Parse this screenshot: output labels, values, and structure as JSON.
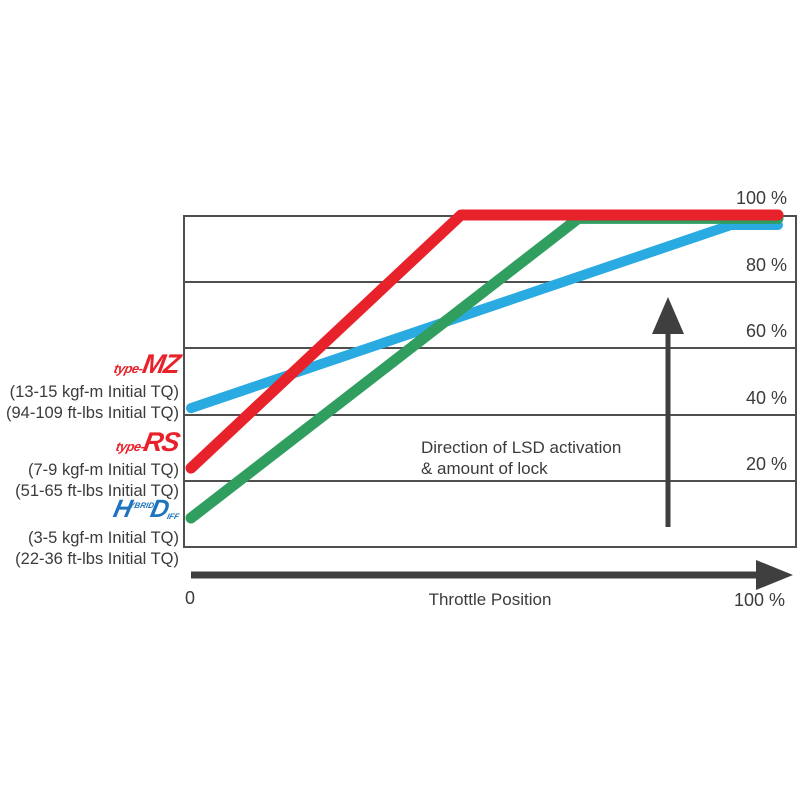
{
  "legend": {
    "items": [
      {
        "prefix": "type-",
        "brand": "MZ",
        "brand_color": "#e8222b",
        "torque_kgf": "(13-15 kgf-m Initial TQ)",
        "torque_ftlbs": "(94-109 ft-lbs Initial TQ)"
      },
      {
        "prefix": "type-",
        "brand": "RS",
        "brand_color": "#e8222b",
        "torque_kgf": "(7-9 kgf-m Initial TQ)",
        "torque_ftlbs": "(51-65 ft-lbs Initial TQ)"
      },
      {
        "brand_big_1": "H",
        "brand_small_1": "YBRID",
        "brand_big_2": "D",
        "brand_small_2": "IFF",
        "brand_color": "#1e73be",
        "torque_kgf": "(3-5 kgf-m Initial TQ)",
        "torque_ftlbs": "(22-36 ft-lbs Initial TQ)"
      }
    ]
  },
  "chart_data": {
    "type": "line",
    "title": "",
    "xlabel": "Throttle Position",
    "x_axis": {
      "min_label": "0",
      "max_label": "100 %",
      "range": [
        0,
        100
      ]
    },
    "y_axis": {
      "range": [
        0,
        100
      ],
      "tick_values": [
        100,
        80,
        60,
        40,
        20
      ],
      "tick_labels": [
        "100 %",
        "80 %",
        "60 %",
        "40 %",
        "20 %"
      ],
      "gridlines": [
        80,
        60,
        40,
        20
      ],
      "grid": true
    },
    "annotation": {
      "line1": "Direction of LSD activation",
      "line2": "& amount of lock"
    },
    "legend_position": "left",
    "series": [
      {
        "name": "type-MZ",
        "initial_torque": "13-15 kgf-m / 94-109 ft-lbs",
        "color": "#29abe2",
        "stroke_width": 10,
        "points_throttle_lock_pct": [
          [
            0,
            42
          ],
          [
            92,
            97
          ],
          [
            100,
            97
          ]
        ]
      },
      {
        "name": "HYBRID DIFF HD",
        "initial_torque": "3-5 kgf-m / 22-36 ft-lbs",
        "color": "#2f9e5f",
        "stroke_width": 11,
        "points_throttle_lock_pct": [
          [
            0,
            9
          ],
          [
            66,
            99
          ],
          [
            100,
            99
          ]
        ]
      },
      {
        "name": "type-RS",
        "initial_torque": "7-9 kgf-m / 51-65 ft-lbs",
        "color": "#e8222b",
        "stroke_width": 11,
        "points_throttle_lock_pct": [
          [
            0,
            24
          ],
          [
            46,
            100
          ],
          [
            100,
            100
          ]
        ]
      }
    ]
  }
}
